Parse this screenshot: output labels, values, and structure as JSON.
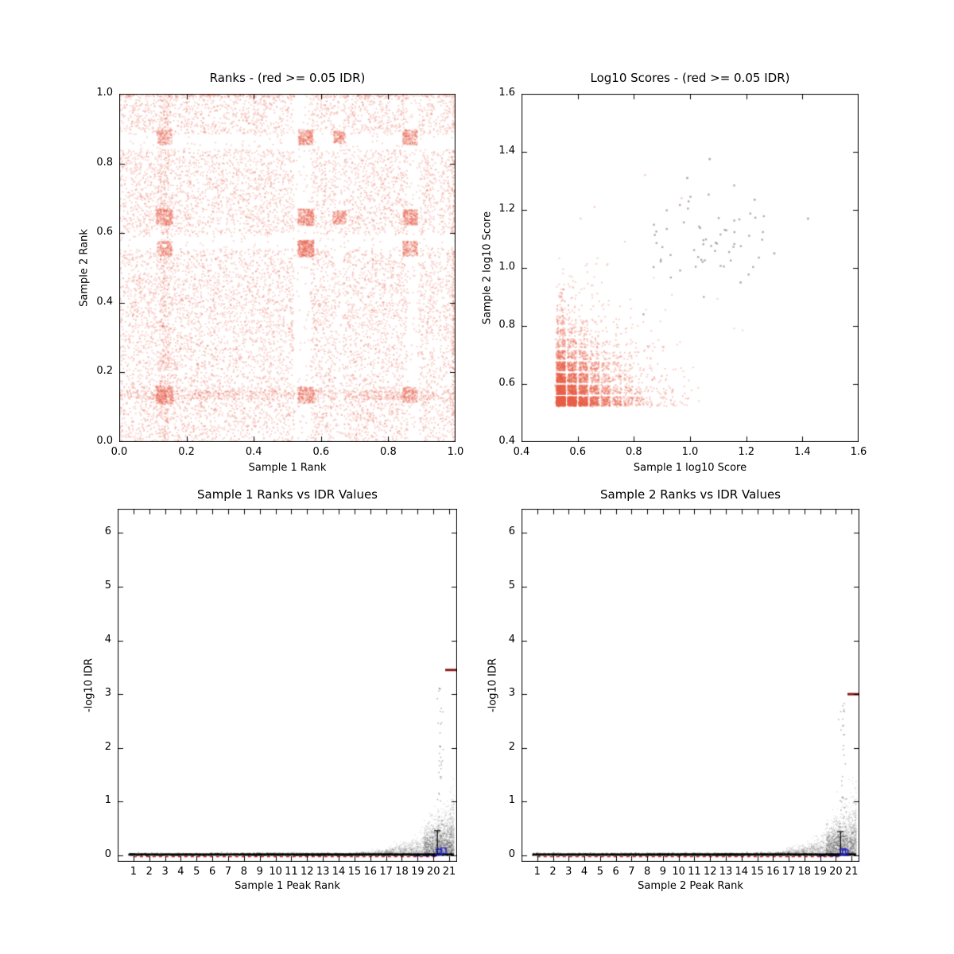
{
  "figure": {
    "background": "#ffffff"
  },
  "chart_data": [
    {
      "id": "rank-scatter",
      "type": "scatter",
      "render": "rank_scatter",
      "title": "Ranks - (red >= 0.05 IDR)",
      "xlabel": "Sample 1 Rank",
      "ylabel": "Sample 2 Rank",
      "xlim": [
        0,
        1
      ],
      "ylim": [
        0,
        1
      ],
      "xticks": {
        "values": [
          0,
          0.2,
          0.4,
          0.6,
          0.8,
          1.0
        ],
        "labels": [
          "0.0",
          "0.2",
          "0.4",
          "0.6",
          "0.8",
          "1.0"
        ]
      },
      "yticks": {
        "values": [
          0,
          0.2,
          0.4,
          0.6,
          0.8,
          1.0
        ],
        "labels": [
          "0.0",
          "0.2",
          "0.4",
          "0.6",
          "0.8",
          "1.0"
        ]
      },
      "point_color": "#E8604A",
      "alpha": 0.25,
      "n_points": 13500,
      "seed": 101,
      "bands_x": [
        {
          "c": 0.545,
          "hw": 0.025,
          "keep": 0.12
        },
        {
          "c": 0.655,
          "hw": 0.011,
          "keep": 0.4
        },
        {
          "c": 0.875,
          "hw": 0.017,
          "keep": 0.18
        },
        {
          "c": 0.945,
          "hw": 0.008,
          "keep": 0.5
        }
      ],
      "bands_y": [
        {
          "c": 0.575,
          "hw": 0.02,
          "keep": 0.15
        },
        {
          "c": 0.862,
          "hw": 0.022,
          "keep": 0.12
        },
        {
          "c": 0.2,
          "hw": 0.008,
          "keep": 0.5
        },
        {
          "c": 0.49,
          "hw": 0.006,
          "keep": 0.6
        }
      ],
      "blocks": [
        {
          "x": 0.555,
          "y": 0.555,
          "s": 0.024,
          "n": 420
        },
        {
          "x": 0.555,
          "y": 0.645,
          "s": 0.024,
          "n": 320
        },
        {
          "x": 0.135,
          "y": 0.645,
          "s": 0.024,
          "n": 260
        },
        {
          "x": 0.865,
          "y": 0.645,
          "s": 0.022,
          "n": 260
        },
        {
          "x": 0.655,
          "y": 0.645,
          "s": 0.02,
          "n": 170
        },
        {
          "x": 0.135,
          "y": 0.135,
          "s": 0.026,
          "n": 330
        },
        {
          "x": 0.555,
          "y": 0.135,
          "s": 0.024,
          "n": 260
        },
        {
          "x": 0.865,
          "y": 0.135,
          "s": 0.022,
          "n": 200
        },
        {
          "x": 0.555,
          "y": 0.875,
          "s": 0.022,
          "n": 250
        },
        {
          "x": 0.865,
          "y": 0.875,
          "s": 0.022,
          "n": 220
        },
        {
          "x": 0.655,
          "y": 0.875,
          "s": 0.018,
          "n": 150
        },
        {
          "x": 0.135,
          "y": 0.875,
          "s": 0.022,
          "n": 170
        },
        {
          "x": 0.865,
          "y": 0.555,
          "s": 0.022,
          "n": 210
        },
        {
          "x": 0.135,
          "y": 0.555,
          "s": 0.022,
          "n": 190
        }
      ],
      "dense_lines": [
        {
          "axis": "y",
          "c": 0.135,
          "hw": 0.013,
          "n": 650
        },
        {
          "axis": "x",
          "c": 0.135,
          "hw": 0.013,
          "n": 450
        },
        {
          "axis": "y",
          "c": 0.995,
          "hw": 0.005,
          "n": 420
        },
        {
          "axis": "x",
          "c": 0.995,
          "hw": 0.005,
          "n": 350
        }
      ]
    },
    {
      "id": "score-scatter",
      "type": "scatter",
      "render": "score_scatter",
      "title": "Log10 Scores - (red >= 0.05 IDR)",
      "xlabel": "Sample 1 log10 Score",
      "ylabel": "Sample 2 log10 Score",
      "xlim": [
        0.4,
        1.6
      ],
      "ylim": [
        0.4,
        1.6
      ],
      "xticks": {
        "values": [
          0.4,
          0.6,
          0.8,
          1.0,
          1.2,
          1.4,
          1.6
        ],
        "labels": [
          "0.4",
          "0.6",
          "0.8",
          "1.0",
          "1.2",
          "1.4",
          "1.6"
        ]
      },
      "yticks": {
        "values": [
          0.4,
          0.6,
          0.8,
          1.0,
          1.2,
          1.4,
          1.6
        ],
        "labels": [
          "0.4",
          "0.6",
          "0.8",
          "1.0",
          "1.2",
          "1.4",
          "1.6"
        ]
      },
      "point_color": "#E8604A",
      "alpha": 0.3,
      "seed": 202,
      "grid_start": 0.54,
      "grid_step": 0.04,
      "n_levels": 13,
      "decay": 0.62,
      "jitter": 0.016,
      "n_points": 5200,
      "tail_n": 260,
      "salmon_outliers": [
        [
          0.84,
          1.32
        ],
        [
          0.66,
          1.21
        ],
        [
          0.61,
          1.17
        ],
        [
          0.97,
          1.24
        ]
      ],
      "gray_color": "#5A5A5A",
      "gray_alpha": 0.5,
      "gray_cluster": {
        "cx": 1.07,
        "cy": 1.08,
        "sx": 0.11,
        "sy": 0.1,
        "n": 60
      },
      "gray_outliers": [
        [
          1.42,
          1.17
        ],
        [
          1.07,
          1.375
        ],
        [
          0.99,
          1.31
        ],
        [
          1.23,
          1.235
        ],
        [
          1.3,
          1.05
        ],
        [
          1.18,
          0.95
        ]
      ]
    },
    {
      "id": "idr-sample1",
      "type": "scatter",
      "render": "idr_fan",
      "title": "Sample 1 Ranks vs IDR Values",
      "xlabel": "Sample 1 Peak Rank",
      "ylabel": "-log10 IDR",
      "xlim": [
        0,
        21.5
      ],
      "ylim": [
        -0.12,
        6.45
      ],
      "xticks": {
        "values": [
          1,
          2,
          3,
          4,
          5,
          6,
          7,
          8,
          9,
          10,
          11,
          12,
          13,
          14,
          15,
          16,
          17,
          18,
          19,
          20,
          21
        ],
        "labels": [
          "1",
          "2",
          "3",
          "4",
          "5",
          "6",
          "7",
          "8",
          "9",
          "10",
          "11",
          "12",
          "13",
          "14",
          "15",
          "16",
          "17",
          "18",
          "19",
          "20",
          "21"
        ]
      },
      "yticks": {
        "values": [
          0,
          1,
          2,
          3,
          4,
          5,
          6
        ],
        "labels": [
          "0",
          "1",
          "2",
          "3",
          "4",
          "5",
          "6"
        ]
      },
      "seed": 303,
      "red_dash_color": "#C8372D",
      "blue": "#2222CC",
      "dark_red": "#8B1A1A",
      "red_spine_y": 3.45,
      "trail_max": 3.12,
      "trail_n": 44,
      "blue_squares": [
        [
          20.35,
          0.06
        ],
        [
          20.62,
          0.085
        ]
      ],
      "blue_dashes": [
        18.95,
        19.55,
        20.05
      ],
      "errorbar": {
        "x": 20.25,
        "y_top": 0.46
      }
    },
    {
      "id": "idr-sample2",
      "type": "scatter",
      "render": "idr_fan",
      "title": "Sample 2 Ranks vs IDR Values",
      "xlabel": "Sample 2 Peak Rank",
      "ylabel": "-log10 IDR",
      "xlim": [
        0,
        21.5
      ],
      "ylim": [
        -0.12,
        6.45
      ],
      "xticks": {
        "values": [
          1,
          2,
          3,
          4,
          5,
          6,
          7,
          8,
          9,
          10,
          11,
          12,
          13,
          14,
          15,
          16,
          17,
          18,
          19,
          20,
          21
        ],
        "labels": [
          "1",
          "2",
          "3",
          "4",
          "5",
          "6",
          "7",
          "8",
          "9",
          "10",
          "11",
          "12",
          "13",
          "14",
          "15",
          "16",
          "17",
          "18",
          "19",
          "20",
          "21"
        ]
      },
      "yticks": {
        "values": [
          0,
          1,
          2,
          3,
          4,
          5,
          6
        ],
        "labels": [
          "0",
          "1",
          "2",
          "3",
          "4",
          "5",
          "6"
        ]
      },
      "seed": 404,
      "red_dash_color": "#C8372D",
      "blue": "#2222CC",
      "dark_red": "#8B1A1A",
      "red_spine_y": 3.0,
      "trail_max": 3.05,
      "trail_n": 40,
      "blue_squares": [
        [
          20.45,
          0.07
        ],
        [
          20.6,
          0.05
        ]
      ],
      "blue_dashes": [
        19.1,
        19.7,
        20.1
      ],
      "errorbar": {
        "x": 20.3,
        "y_top": 0.44
      }
    }
  ]
}
